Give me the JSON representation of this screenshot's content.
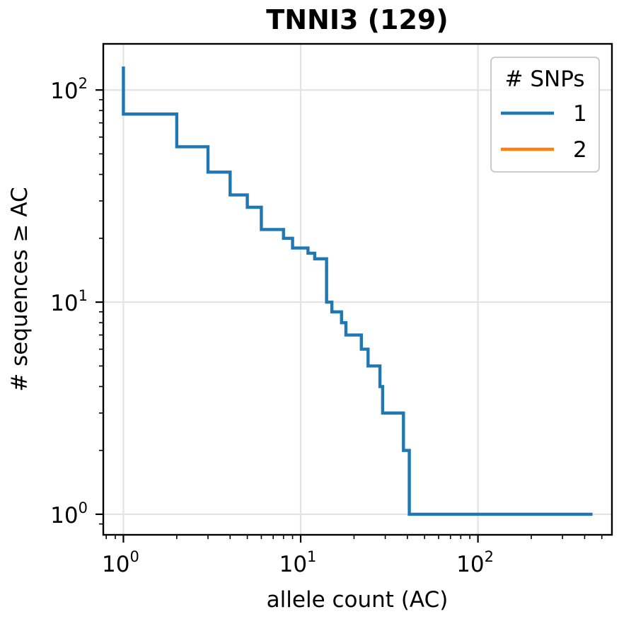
{
  "chart_data": {
    "type": "line",
    "title": "TNNI3 (129)",
    "xlabel": "allele count (AC)",
    "ylabel": "# sequences ≥ AC",
    "xscale": "log",
    "yscale": "log",
    "xlim": [
      0.77,
      570
    ],
    "ylim": [
      0.8,
      165
    ],
    "x_ticks": [
      {
        "base": "10",
        "exp": "0",
        "value": 1
      },
      {
        "base": "10",
        "exp": "1",
        "value": 10
      },
      {
        "base": "10",
        "exp": "2",
        "value": 100
      }
    ],
    "y_ticks": [
      {
        "base": "10",
        "exp": "0",
        "value": 1
      },
      {
        "base": "10",
        "exp": "1",
        "value": 10
      },
      {
        "base": "10",
        "exp": "2",
        "value": 100
      }
    ],
    "grid": true,
    "legend": {
      "title": "# SNPs",
      "placement": "top-right"
    },
    "series": [
      {
        "name": "1",
        "color": "#1f77b4",
        "drawstyle": "steps-post",
        "points": [
          [
            1,
            129
          ],
          [
            1,
            77
          ],
          [
            2,
            54
          ],
          [
            3,
            41
          ],
          [
            4,
            32
          ],
          [
            5,
            28
          ],
          [
            6,
            22
          ],
          [
            8,
            20
          ],
          [
            9,
            18
          ],
          [
            11,
            17
          ],
          [
            12,
            16
          ],
          [
            14,
            10
          ],
          [
            15,
            9
          ],
          [
            17,
            8
          ],
          [
            18,
            7
          ],
          [
            22,
            6
          ],
          [
            24,
            5
          ],
          [
            28,
            4
          ],
          [
            29,
            3
          ],
          [
            38,
            2
          ],
          [
            41,
            1
          ],
          [
            443,
            1
          ]
        ]
      },
      {
        "name": "2",
        "color": "#ff7f0e",
        "drawstyle": "steps-post",
        "points": []
      }
    ]
  }
}
